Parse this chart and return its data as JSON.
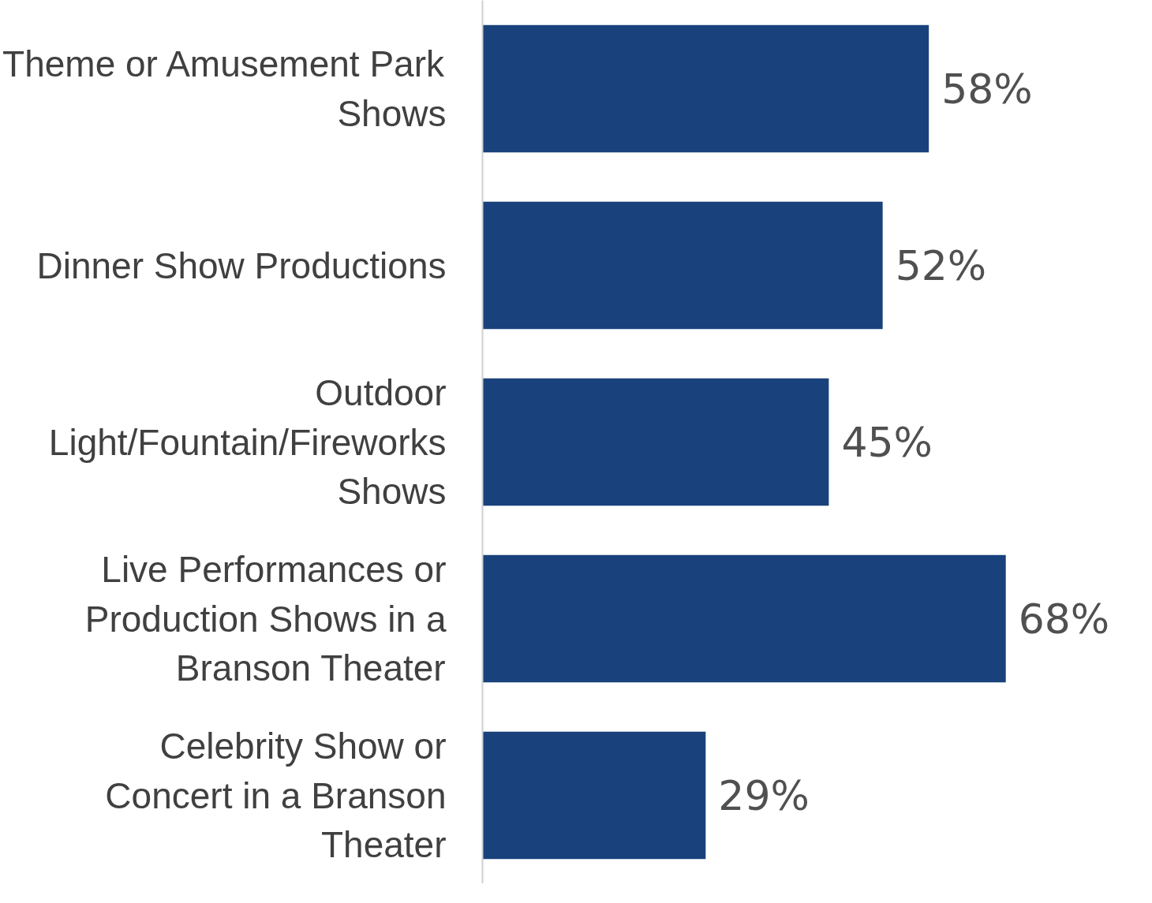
{
  "chart_data": {
    "type": "bar",
    "orientation": "horizontal",
    "categories": [
      "Theme or Amusement Park Shows",
      "Dinner Show Productions",
      "Outdoor Light/Fountain/Fireworks Shows",
      "Live Performances or Production Shows in a Branson Theater",
      "Celebrity Show or Concert in a Branson Theater"
    ],
    "values": [
      58,
      52,
      45,
      68,
      29
    ],
    "value_labels": [
      "58%",
      "52%",
      "45%",
      "68%",
      "29%"
    ],
    "color": "#19427c",
    "grid": false
  }
}
